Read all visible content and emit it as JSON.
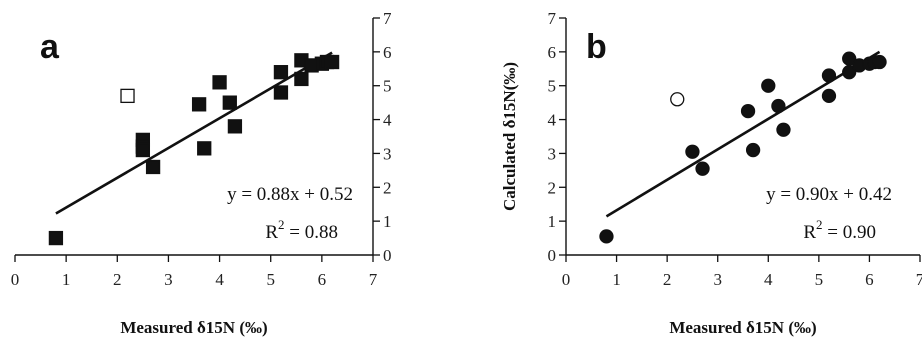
{
  "chart_data": [
    {
      "type": "scatter",
      "panel_label": "a",
      "marker": "square",
      "xlabel": "Measured δ15N (‰)",
      "ylabel": "",
      "xlim": [
        0,
        7
      ],
      "ylim": [
        0,
        7
      ],
      "x_ticks": [
        "0",
        "1",
        "2",
        "3",
        "4",
        "5",
        "6",
        "7"
      ],
      "y_ticks": [
        "0",
        "1",
        "2",
        "3",
        "4",
        "5",
        "6",
        "7"
      ],
      "y_axis_side": "right",
      "grid": false,
      "series": [
        {
          "filled": true,
          "points": [
            [
              0.8,
              0.5
            ],
            [
              2.5,
              3.4
            ],
            [
              2.5,
              3.2
            ],
            [
              2.5,
              3.1
            ],
            [
              2.7,
              2.6
            ],
            [
              3.6,
              4.45
            ],
            [
              3.7,
              3.15
            ],
            [
              4.0,
              5.1
            ],
            [
              4.2,
              4.5
            ],
            [
              4.3,
              3.8
            ],
            [
              5.2,
              4.8
            ],
            [
              5.2,
              5.4
            ],
            [
              5.6,
              5.2
            ],
            [
              5.6,
              5.75
            ],
            [
              5.8,
              5.6
            ],
            [
              6.0,
              5.65
            ],
            [
              6.1,
              5.7
            ],
            [
              6.2,
              5.7
            ]
          ]
        },
        {
          "filled": false,
          "points": [
            [
              2.2,
              4.7
            ]
          ]
        }
      ],
      "fit_line": {
        "slope": 0.88,
        "intercept": 0.52,
        "x_range": [
          0.8,
          6.2
        ]
      },
      "equation": "y = 0.88x + 0.52",
      "r2_label": "R",
      "r2_exp": "2",
      "r2_value": " = 0.88"
    },
    {
      "type": "scatter",
      "panel_label": "b",
      "marker": "circle",
      "xlabel": "Measured δ15N (‰)",
      "ylabel": "Calculated δ15N(‰)",
      "xlim": [
        0,
        7
      ],
      "ylim": [
        0,
        7
      ],
      "x_ticks": [
        "0",
        "1",
        "2",
        "3",
        "4",
        "5",
        "6",
        "7"
      ],
      "y_ticks": [
        "0",
        "1",
        "2",
        "3",
        "4",
        "5",
        "6",
        "7"
      ],
      "y_axis_side": "left",
      "grid": false,
      "series": [
        {
          "filled": true,
          "points": [
            [
              0.8,
              0.55
            ],
            [
              2.5,
              3.05
            ],
            [
              2.7,
              2.55
            ],
            [
              3.6,
              4.25
            ],
            [
              3.7,
              3.1
            ],
            [
              4.0,
              5.0
            ],
            [
              4.2,
              4.4
            ],
            [
              4.3,
              3.7
            ],
            [
              5.2,
              4.7
            ],
            [
              5.2,
              5.3
            ],
            [
              5.6,
              5.4
            ],
            [
              5.6,
              5.8
            ],
            [
              5.8,
              5.6
            ],
            [
              6.0,
              5.65
            ],
            [
              6.1,
              5.7
            ],
            [
              6.2,
              5.7
            ]
          ]
        },
        {
          "filled": false,
          "points": [
            [
              2.2,
              4.6
            ]
          ]
        }
      ],
      "fit_line": {
        "slope": 0.9,
        "intercept": 0.42,
        "x_range": [
          0.8,
          6.2
        ]
      },
      "equation": "y = 0.90x + 0.42",
      "r2_label": "R",
      "r2_exp": "2",
      "r2_value": " = 0.90"
    }
  ]
}
